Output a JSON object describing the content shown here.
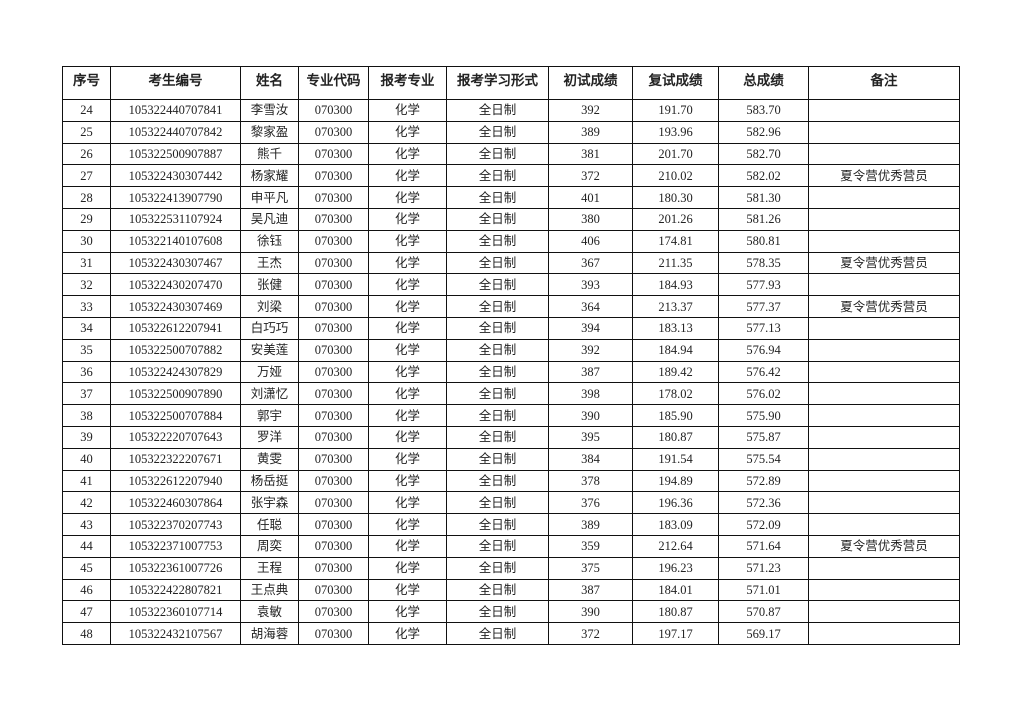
{
  "headers": [
    "序号",
    "考生编号",
    "姓名",
    "专业代码",
    "报考专业",
    "报考学习形式",
    "初试成绩",
    "复试成绩",
    "总成绩",
    "备注"
  ],
  "rows": [
    [
      "24",
      "105322440707841",
      "李雪汝",
      "070300",
      "化学",
      "全日制",
      "392",
      "191.70",
      "583.70",
      ""
    ],
    [
      "25",
      "105322440707842",
      "黎家盈",
      "070300",
      "化学",
      "全日制",
      "389",
      "193.96",
      "582.96",
      ""
    ],
    [
      "26",
      "105322500907887",
      "熊千",
      "070300",
      "化学",
      "全日制",
      "381",
      "201.70",
      "582.70",
      ""
    ],
    [
      "27",
      "105322430307442",
      "杨家耀",
      "070300",
      "化学",
      "全日制",
      "372",
      "210.02",
      "582.02",
      "夏令营优秀营员"
    ],
    [
      "28",
      "105322413907790",
      "申平凡",
      "070300",
      "化学",
      "全日制",
      "401",
      "180.30",
      "581.30",
      ""
    ],
    [
      "29",
      "105322531107924",
      "吴凡迪",
      "070300",
      "化学",
      "全日制",
      "380",
      "201.26",
      "581.26",
      ""
    ],
    [
      "30",
      "105322140107608",
      "徐钰",
      "070300",
      "化学",
      "全日制",
      "406",
      "174.81",
      "580.81",
      ""
    ],
    [
      "31",
      "105322430307467",
      "王杰",
      "070300",
      "化学",
      "全日制",
      "367",
      "211.35",
      "578.35",
      "夏令营优秀营员"
    ],
    [
      "32",
      "105322430207470",
      "张健",
      "070300",
      "化学",
      "全日制",
      "393",
      "184.93",
      "577.93",
      ""
    ],
    [
      "33",
      "105322430307469",
      "刘梁",
      "070300",
      "化学",
      "全日制",
      "364",
      "213.37",
      "577.37",
      "夏令营优秀营员"
    ],
    [
      "34",
      "105322612207941",
      "白巧巧",
      "070300",
      "化学",
      "全日制",
      "394",
      "183.13",
      "577.13",
      ""
    ],
    [
      "35",
      "105322500707882",
      "安美莲",
      "070300",
      "化学",
      "全日制",
      "392",
      "184.94",
      "576.94",
      ""
    ],
    [
      "36",
      "105322424307829",
      "万娅",
      "070300",
      "化学",
      "全日制",
      "387",
      "189.42",
      "576.42",
      ""
    ],
    [
      "37",
      "105322500907890",
      "刘潇忆",
      "070300",
      "化学",
      "全日制",
      "398",
      "178.02",
      "576.02",
      ""
    ],
    [
      "38",
      "105322500707884",
      "郭宇",
      "070300",
      "化学",
      "全日制",
      "390",
      "185.90",
      "575.90",
      ""
    ],
    [
      "39",
      "105322220707643",
      "罗洋",
      "070300",
      "化学",
      "全日制",
      "395",
      "180.87",
      "575.87",
      ""
    ],
    [
      "40",
      "105322322207671",
      "黄雯",
      "070300",
      "化学",
      "全日制",
      "384",
      "191.54",
      "575.54",
      ""
    ],
    [
      "41",
      "105322612207940",
      "杨岳挺",
      "070300",
      "化学",
      "全日制",
      "378",
      "194.89",
      "572.89",
      ""
    ],
    [
      "42",
      "105322460307864",
      "张宇森",
      "070300",
      "化学",
      "全日制",
      "376",
      "196.36",
      "572.36",
      ""
    ],
    [
      "43",
      "105322370207743",
      "任聪",
      "070300",
      "化学",
      "全日制",
      "389",
      "183.09",
      "572.09",
      ""
    ],
    [
      "44",
      "105322371007753",
      "周奕",
      "070300",
      "化学",
      "全日制",
      "359",
      "212.64",
      "571.64",
      "夏令营优秀营员"
    ],
    [
      "45",
      "105322361007726",
      "王程",
      "070300",
      "化学",
      "全日制",
      "375",
      "196.23",
      "571.23",
      ""
    ],
    [
      "46",
      "105322422807821",
      "王点典",
      "070300",
      "化学",
      "全日制",
      "387",
      "184.01",
      "571.01",
      ""
    ],
    [
      "47",
      "105322360107714",
      "袁敏",
      "070300",
      "化学",
      "全日制",
      "390",
      "180.87",
      "570.87",
      ""
    ],
    [
      "48",
      "105322432107567",
      "胡海蓉",
      "070300",
      "化学",
      "全日制",
      "372",
      "197.17",
      "569.17",
      ""
    ]
  ]
}
